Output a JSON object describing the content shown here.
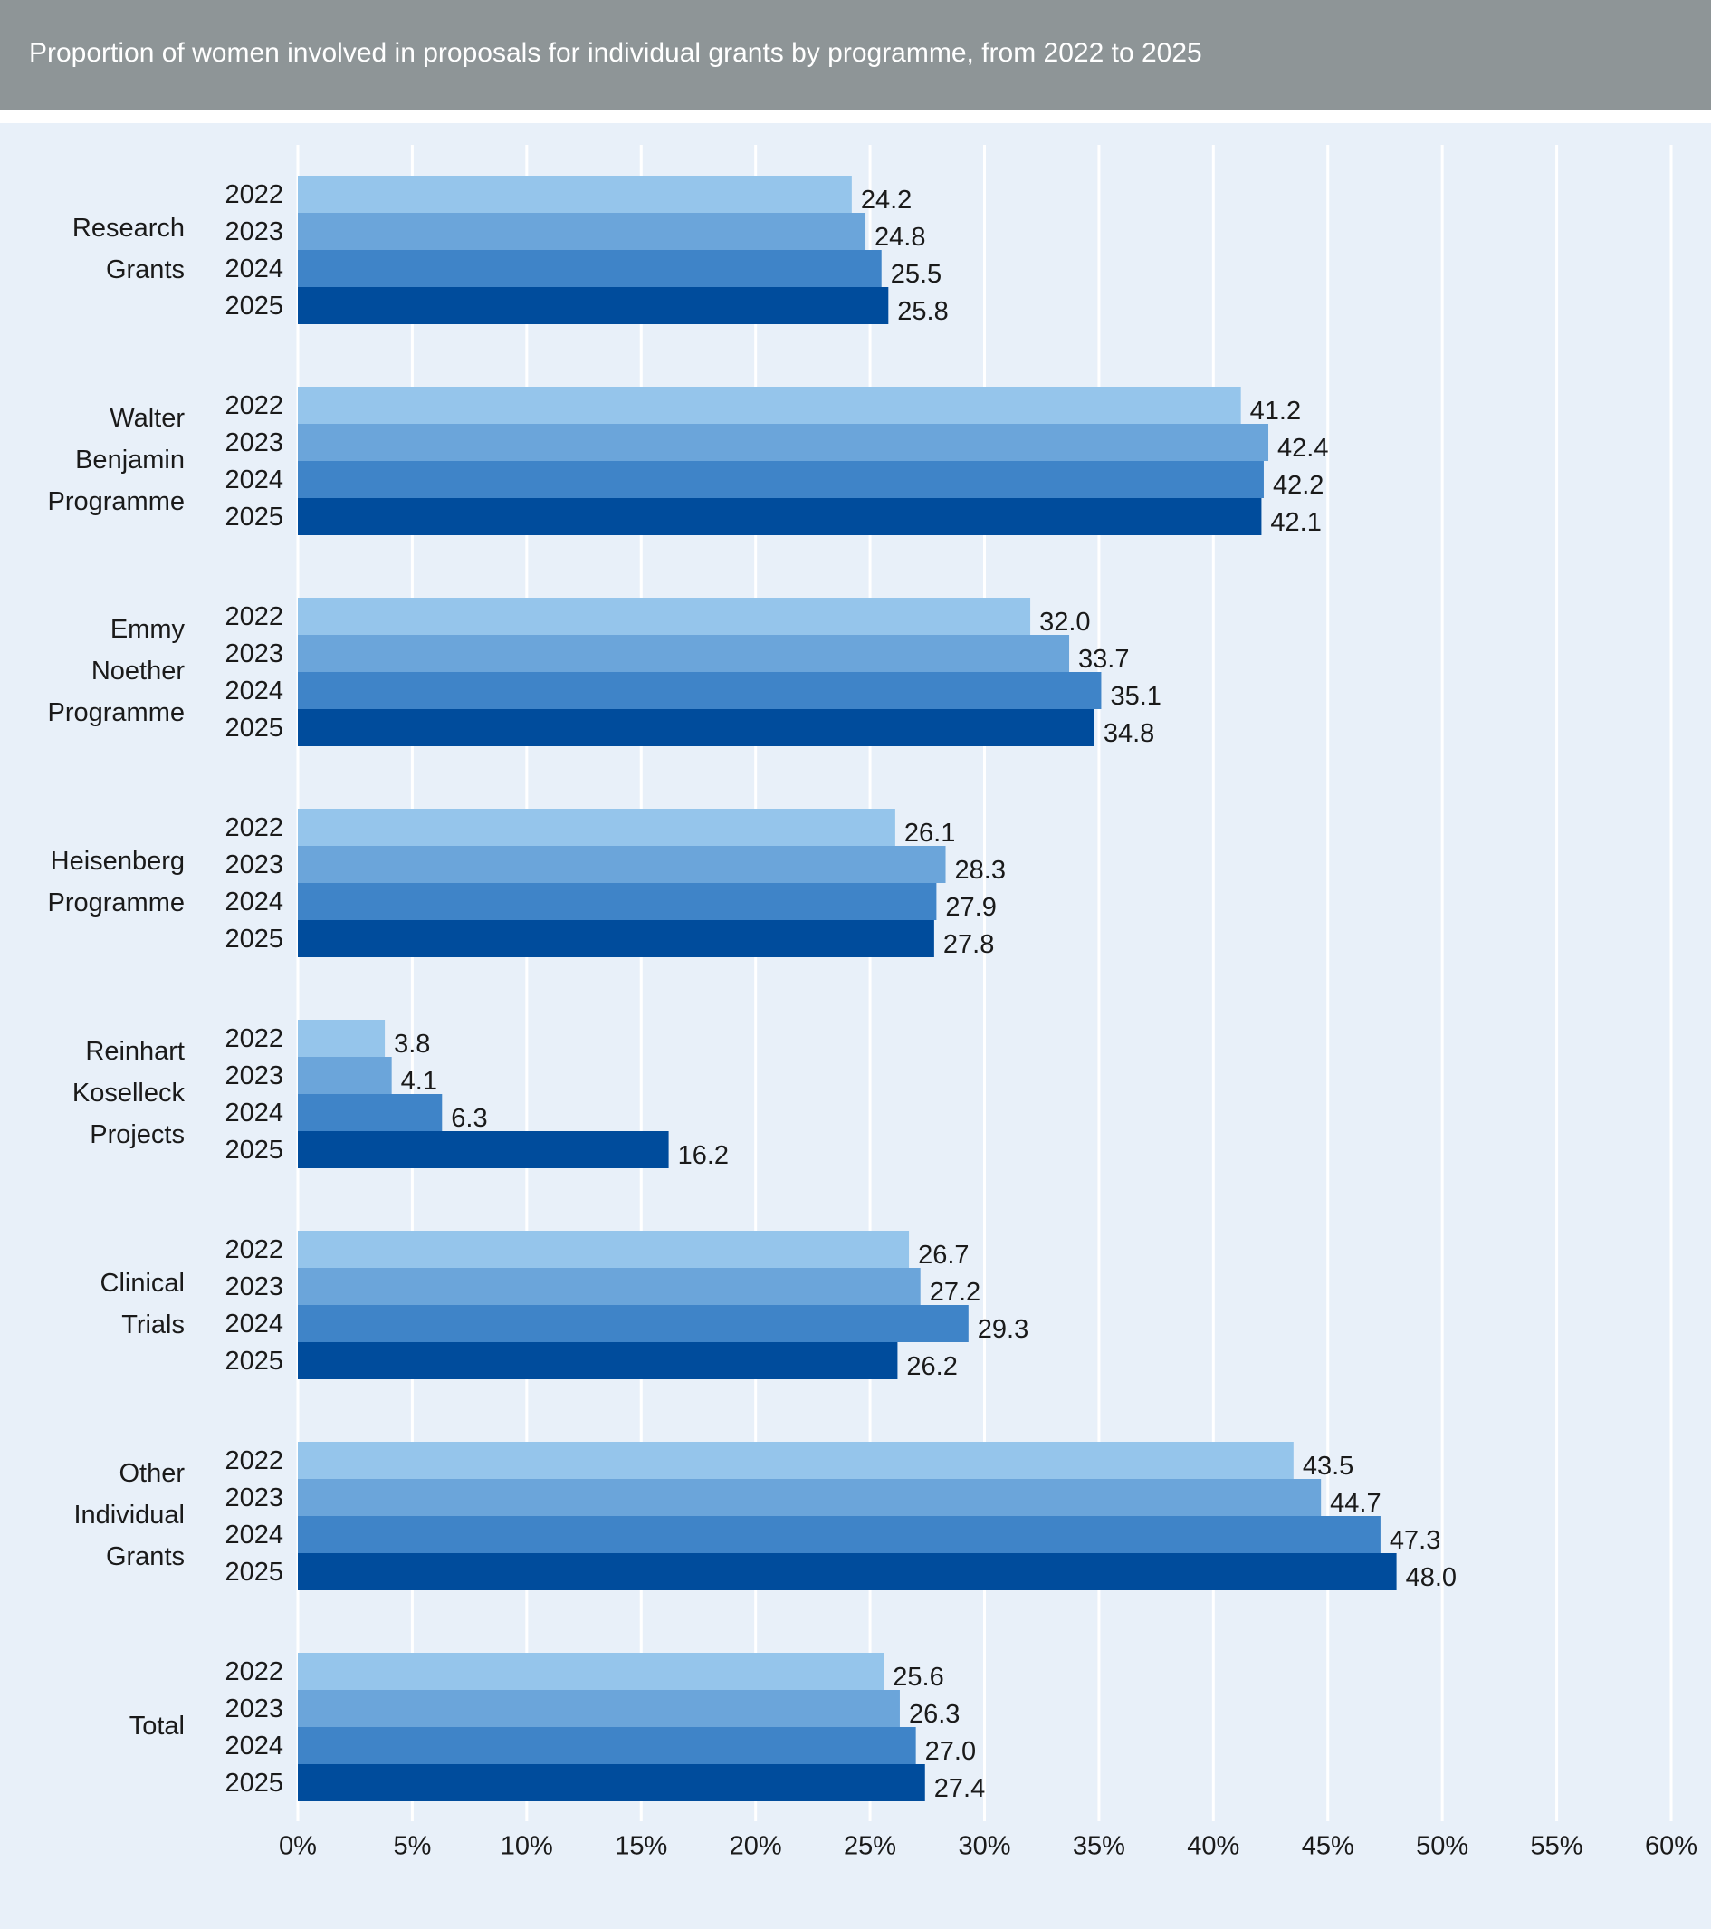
{
  "chart_data": {
    "type": "hbar",
    "title": "Proportion of women involved in proposals for individual grants by programme, from 2022 to 2025",
    "categories": [
      "Research Grants",
      "Walter Benjamin Programme",
      "Emmy Noether Programme",
      "Heisenberg Programme",
      "Reinhart Koselleck Projects",
      "Clinical Trials",
      "Other Individual Grants",
      "Total"
    ],
    "series": [
      {
        "name": "2022",
        "color": "#95c5eb",
        "values": [
          24.2,
          41.2,
          32.0,
          26.1,
          3.8,
          26.7,
          43.5,
          25.6
        ],
        "value_labels": [
          "24.2",
          "41.2",
          "32.0",
          "26.1",
          "3.8",
          "26.7",
          "43.5",
          "25.6"
        ]
      },
      {
        "name": "2023",
        "color": "#6ba5da",
        "values": [
          24.8,
          42.4,
          33.7,
          28.3,
          4.1,
          27.2,
          44.7,
          26.3
        ],
        "value_labels": [
          "24.8",
          "42.4",
          "33.7",
          "28.3",
          "4.1",
          "27.2",
          "44.7",
          "26.3"
        ]
      },
      {
        "name": "2024",
        "color": "#3f84c8",
        "values": [
          25.5,
          42.2,
          35.1,
          27.9,
          6.3,
          29.3,
          47.3,
          27.0
        ],
        "value_labels": [
          "25.5",
          "42.2",
          "35.1",
          "27.9",
          "6.3",
          "29.3",
          "47.3",
          "27.0"
        ]
      },
      {
        "name": "2025",
        "color": "#004c9c",
        "values": [
          25.8,
          42.1,
          34.8,
          27.8,
          16.2,
          26.2,
          48.0,
          27.4
        ],
        "value_labels": [
          "25.8",
          "42.1",
          "34.8",
          "27.8",
          "16.2",
          "26.2",
          "48.0",
          "27.4"
        ]
      }
    ],
    "xlim": [
      0,
      60
    ],
    "xticks": [
      {
        "value": 0,
        "label": "0%"
      },
      {
        "value": 5,
        "label": "5%"
      },
      {
        "value": 10,
        "label": "10%"
      },
      {
        "value": 15,
        "label": "15%"
      },
      {
        "value": 20,
        "label": "20%"
      },
      {
        "value": 25,
        "label": "25%"
      },
      {
        "value": 30,
        "label": "30%"
      },
      {
        "value": 35,
        "label": "35%"
      },
      {
        "value": 40,
        "label": "40%"
      },
      {
        "value": 45,
        "label": "45%"
      },
      {
        "value": 50,
        "label": "50%"
      },
      {
        "value": 55,
        "label": "55%"
      },
      {
        "value": 60,
        "label": "60%"
      }
    ],
    "grid": true
  }
}
